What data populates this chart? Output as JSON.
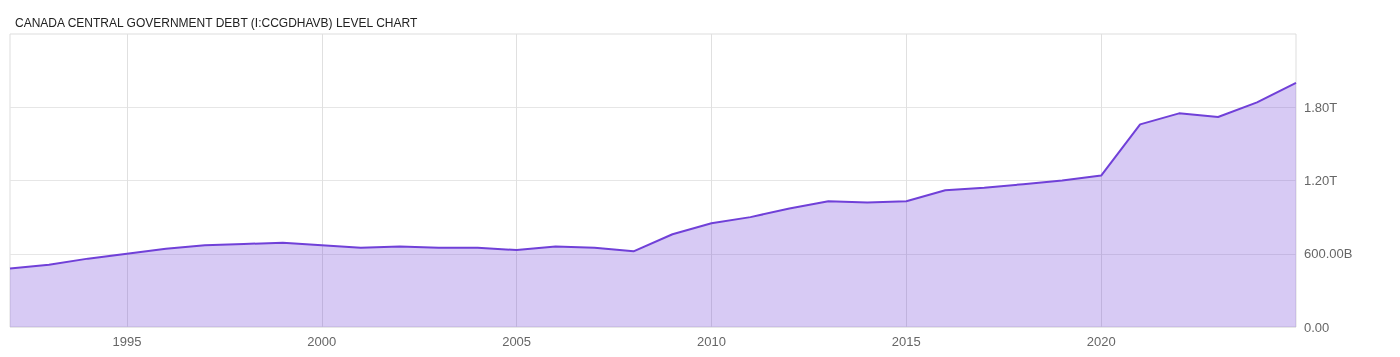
{
  "chart_data": {
    "type": "area",
    "title": "CANADA CENTRAL GOVERNMENT DEBT (I:CCGDHAVB) LEVEL CHART",
    "x": [
      1992,
      1993,
      1994,
      1995,
      1996,
      1997,
      1998,
      1999,
      2000,
      2001,
      2002,
      2003,
      2004,
      2005,
      2006,
      2007,
      2008,
      2009,
      2010,
      2011,
      2012,
      2013,
      2014,
      2015,
      2016,
      2017,
      2018,
      2019,
      2020,
      2021,
      2022,
      2023,
      2024,
      2025
    ],
    "series": [
      {
        "color": "#7040d8",
        "values": [
          480000000000,
          510000000000,
          560000000000,
          600000000000,
          640000000000,
          670000000000,
          680000000000,
          690000000000,
          670000000000,
          650000000000,
          660000000000,
          650000000000,
          650000000000,
          630000000000,
          660000000000,
          650000000000,
          620000000000,
          760000000000,
          850000000000,
          900000000000,
          970000000000,
          1030000000000,
          1020000000000,
          1030000000000,
          1120000000000,
          1140000000000,
          1170000000000,
          1200000000000,
          1240000000000,
          1660000000000,
          1750000000000,
          1720000000000,
          1840000000000,
          2000000000000
        ]
      }
    ],
    "xlim": [
      1992,
      2025
    ],
    "xticks": [
      1995,
      2000,
      2005,
      2010,
      2015,
      2020
    ],
    "ylim": [
      0,
      2400000000000
    ],
    "yticks": [
      {
        "value": 0,
        "label": "0.00"
      },
      {
        "value": 600000000000,
        "label": "600.00B"
      },
      {
        "value": 1200000000000,
        "label": "1.20T"
      },
      {
        "value": 1800000000000,
        "label": "1.80T"
      }
    ],
    "grid": true
  }
}
